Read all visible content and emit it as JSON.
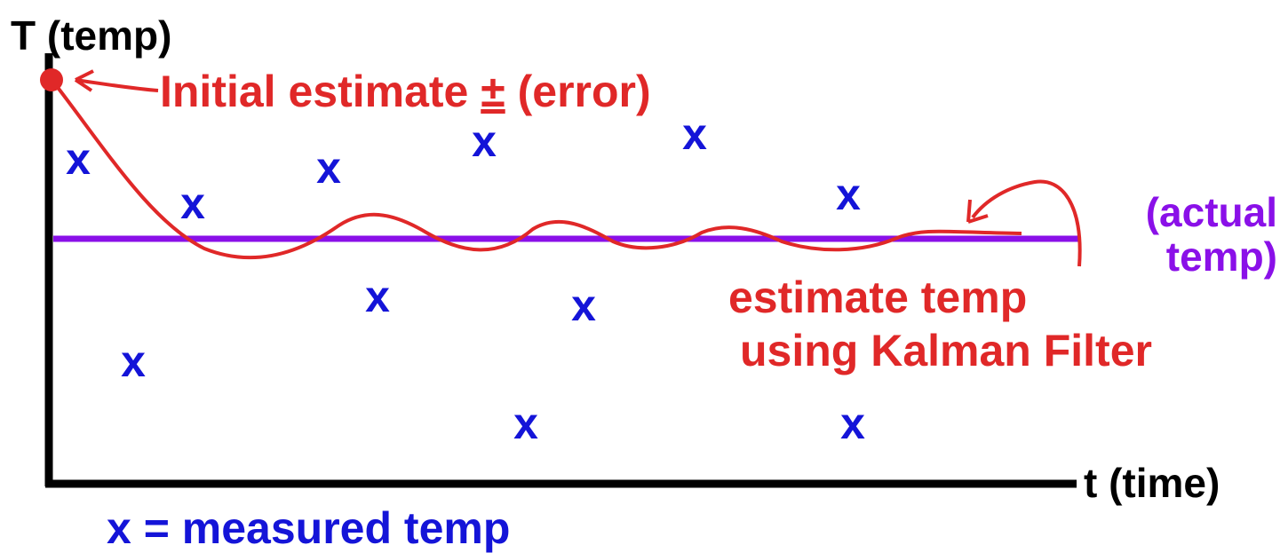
{
  "labels": {
    "y_axis": "T (temp)",
    "x_axis": "t (time)",
    "initial": "Initial estimate",
    "plus_minus": "±",
    "error": "(error)",
    "actual": [
      "(actual",
      "temp)"
    ],
    "estimate": [
      "estimate temp",
      "using Kalman Filter"
    ],
    "legend": "x = measured temp"
  },
  "marker": "x"
}
